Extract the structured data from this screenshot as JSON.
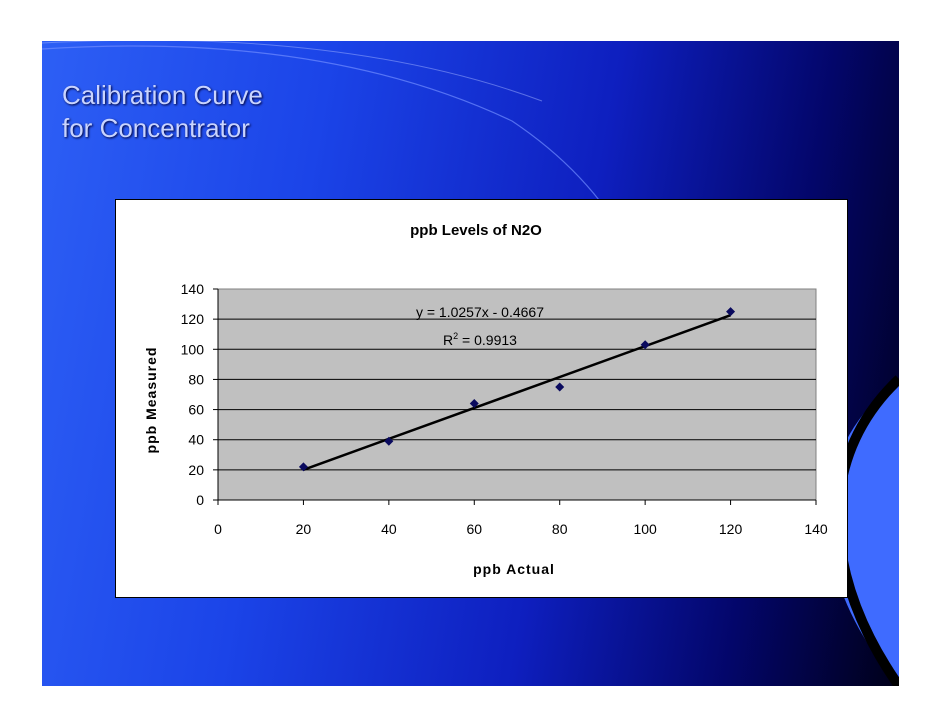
{
  "slide": {
    "title_line1": "Calibration Curve",
    "title_line2": "for Concentrator"
  },
  "colors": {
    "marker": "#0a0a5e",
    "plot_area": "#c0c0c0",
    "trendline": "#000000",
    "title_text": "#c9d4ff",
    "background_accent": "#1b44e8"
  },
  "chart_data": {
    "type": "scatter",
    "title": "ppb Levels of N2O",
    "xlabel": "ppb Actual",
    "ylabel": "ppb Measured",
    "xlim": [
      0,
      140
    ],
    "ylim": [
      0,
      140
    ],
    "x_ticks": [
      0,
      20,
      40,
      60,
      80,
      100,
      120,
      140
    ],
    "y_ticks": [
      0,
      20,
      40,
      60,
      80,
      100,
      120,
      140
    ],
    "grid": "horizontal",
    "legend": "none",
    "series": [
      {
        "x": [
          20,
          40,
          60,
          80,
          100,
          120
        ],
        "y": [
          22,
          39,
          64,
          75,
          103,
          125
        ]
      }
    ],
    "trendline": {
      "type": "linear",
      "slope": 1.0257,
      "intercept": -0.4667,
      "x_range": [
        20,
        120
      ],
      "equation": "y = 1.0257x - 0.4667",
      "r2_label": "R",
      "r2_exponent": "2",
      "r2_value": " = 0.9913"
    }
  }
}
